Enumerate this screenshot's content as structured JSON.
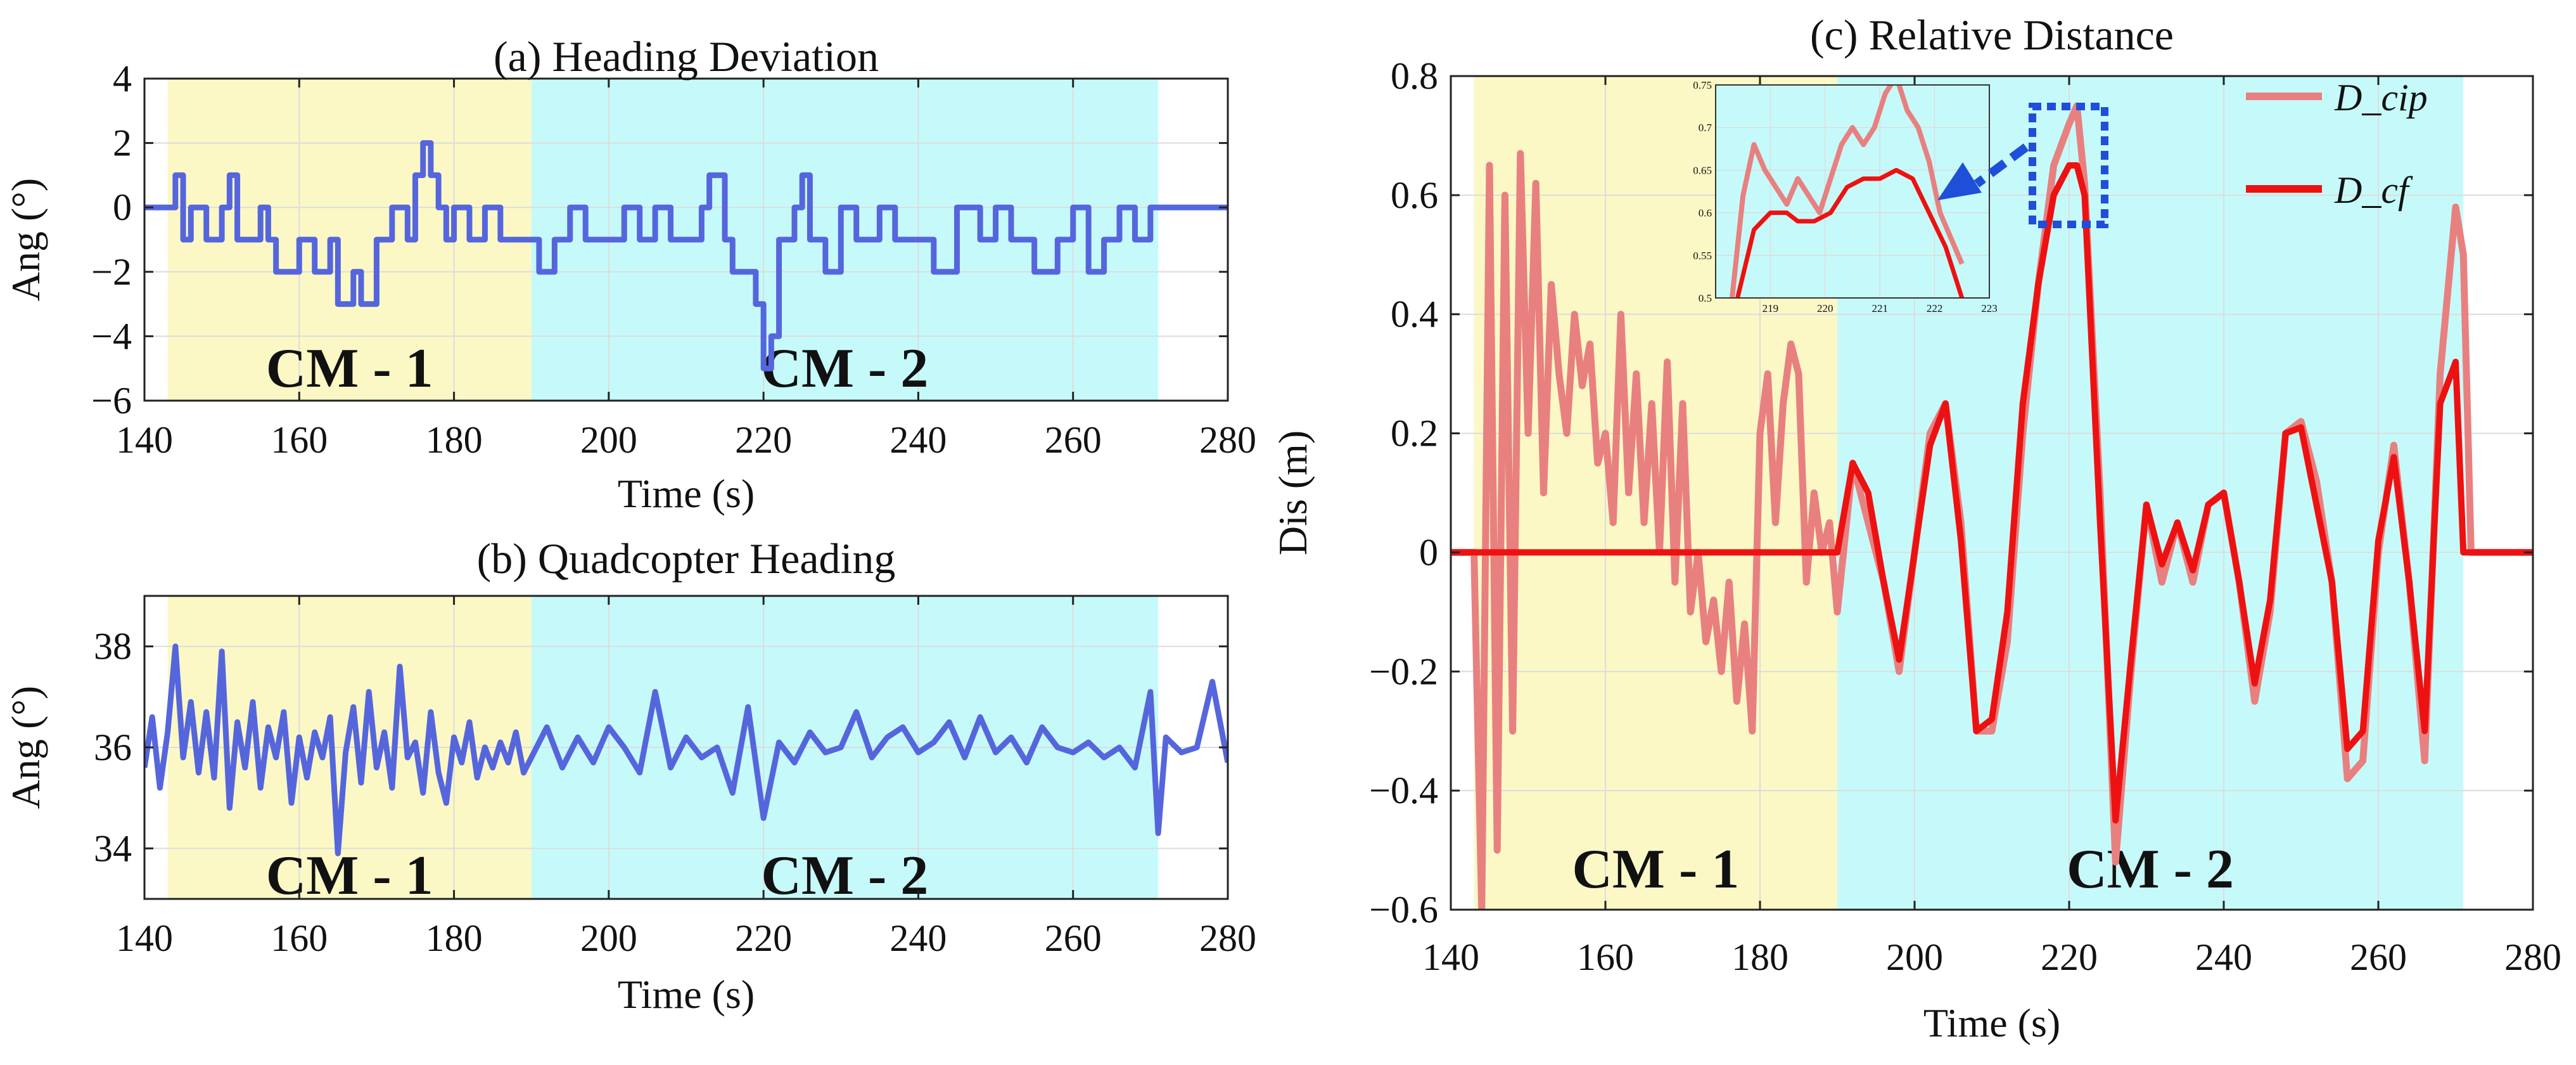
{
  "colors": {
    "cm1_band": "#fbf8c6",
    "cm2_band": "#c6fafa",
    "heading_line": "#5566dd",
    "dcip": "#e88080",
    "dcf": "#ee1111",
    "grid": "#dcdcdc",
    "arrow": "#1f4fd8"
  },
  "chart_data": [
    {
      "id": "a",
      "type": "line",
      "title": "(a) Heading Deviation",
      "xlabel": "Time (s)",
      "ylabel": "Ang (°)",
      "xlim": [
        140,
        280
      ],
      "ylim": [
        -6,
        4
      ],
      "xticks": [
        140,
        160,
        180,
        200,
        220,
        240,
        260,
        280
      ],
      "yticks": [
        -6,
        -4,
        -2,
        0,
        2,
        4
      ],
      "ytick_labels": [
        "−6",
        "−4",
        "−2",
        "0",
        "2",
        "4"
      ],
      "regions": [
        {
          "label": "CM - 1",
          "x": [
            143,
            190
          ],
          "color": "cm1"
        },
        {
          "label": "CM - 2",
          "x": [
            190,
            271
          ],
          "color": "cm2"
        }
      ],
      "series": [
        {
          "name": "Heading deviation",
          "x": [
            140,
            143,
            144,
            145,
            146,
            148,
            150,
            151,
            152,
            155,
            156,
            157,
            160,
            162,
            164,
            165,
            167,
            168,
            170,
            172,
            174,
            175,
            176,
            177,
            178,
            179,
            180,
            182,
            184,
            186,
            188,
            190,
            191,
            193,
            195,
            197,
            200,
            202,
            204,
            206,
            208,
            210,
            212,
            213,
            215,
            216,
            218,
            219,
            220,
            221,
            222,
            224,
            225,
            226,
            228,
            230,
            232,
            235,
            237,
            240,
            242,
            245,
            248,
            250,
            252,
            255,
            258,
            260,
            262,
            264,
            266,
            268,
            270,
            271,
            275,
            280
          ],
          "y": [
            0,
            0,
            1,
            -1,
            0,
            -1,
            0,
            1,
            -1,
            0,
            -1,
            -2,
            -1,
            -2,
            -1,
            -3,
            -2,
            -3,
            -1,
            0,
            -1,
            1,
            2,
            1,
            0,
            -1,
            0,
            -1,
            0,
            -1,
            -1,
            -1,
            -2,
            -1,
            0,
            -1,
            -1,
            0,
            -1,
            0,
            -1,
            -1,
            0,
            1,
            -1,
            -2,
            -2,
            -3,
            -5,
            -4,
            -1,
            0,
            1,
            -1,
            -2,
            0,
            -1,
            0,
            -1,
            -1,
            -2,
            0,
            -1,
            0,
            -1,
            -2,
            -1,
            0,
            -2,
            -1,
            0,
            -1,
            0,
            0,
            0,
            0
          ]
        }
      ]
    },
    {
      "id": "b",
      "type": "line",
      "title": "(b) Quadcopter Heading",
      "xlabel": "Time (s)",
      "ylabel": "Ang (°)",
      "xlim": [
        140,
        280
      ],
      "ylim": [
        33,
        39
      ],
      "xticks": [
        140,
        160,
        180,
        200,
        220,
        240,
        260,
        280
      ],
      "yticks": [
        34,
        36,
        38
      ],
      "ytick_labels": [
        "34",
        "36",
        "38"
      ],
      "regions": [
        {
          "label": "CM - 1",
          "x": [
            143,
            190
          ],
          "color": "cm1"
        },
        {
          "label": "CM - 2",
          "x": [
            190,
            271
          ],
          "color": "cm2"
        }
      ],
      "series": [
        {
          "name": "Heading",
          "x": [
            140,
            141,
            142,
            143,
            144,
            145,
            146,
            147,
            148,
            149,
            150,
            151,
            152,
            153,
            154,
            155,
            156,
            157,
            158,
            159,
            160,
            161,
            162,
            163,
            164,
            165,
            166,
            167,
            168,
            169,
            170,
            171,
            172,
            173,
            174,
            175,
            176,
            177,
            178,
            179,
            180,
            181,
            182,
            183,
            184,
            185,
            186,
            187,
            188,
            189,
            190,
            192,
            194,
            196,
            198,
            200,
            202,
            204,
            206,
            208,
            210,
            212,
            214,
            216,
            218,
            220,
            222,
            224,
            226,
            228,
            230,
            232,
            234,
            236,
            238,
            240,
            242,
            244,
            246,
            248,
            250,
            252,
            254,
            256,
            258,
            260,
            262,
            264,
            266,
            268,
            270,
            271,
            272,
            274,
            276,
            278,
            280
          ],
          "y": [
            35.6,
            36.6,
            35.2,
            36.3,
            38.0,
            35.8,
            36.9,
            35.5,
            36.7,
            35.4,
            37.9,
            34.8,
            36.5,
            35.6,
            36.9,
            35.2,
            36.4,
            35.8,
            36.7,
            34.9,
            36.2,
            35.4,
            36.3,
            35.8,
            36.6,
            33.9,
            35.9,
            36.8,
            35.3,
            37.1,
            35.6,
            36.3,
            35.2,
            37.6,
            35.8,
            36.1,
            35.1,
            36.7,
            35.5,
            34.9,
            36.2,
            35.7,
            36.5,
            35.4,
            36.0,
            35.6,
            36.1,
            35.7,
            36.3,
            35.5,
            35.8,
            36.4,
            35.6,
            36.2,
            35.7,
            36.4,
            36.0,
            35.5,
            37.1,
            35.6,
            36.2,
            35.8,
            36.0,
            35.1,
            36.8,
            34.6,
            36.1,
            35.7,
            36.3,
            35.9,
            36.0,
            36.7,
            35.8,
            36.2,
            36.4,
            35.9,
            36.1,
            36.5,
            35.8,
            36.6,
            35.9,
            36.2,
            35.7,
            36.4,
            36.0,
            35.9,
            36.1,
            35.8,
            36.0,
            35.6,
            37.1,
            34.3,
            36.2,
            35.9,
            36.0,
            37.3,
            35.7
          ]
        }
      ]
    },
    {
      "id": "c",
      "type": "line",
      "title": "(c) Relative Distance",
      "xlabel": "Time (s)",
      "ylabel": "Dis (m)",
      "xlim": [
        140,
        280
      ],
      "ylim": [
        -0.6,
        0.8
      ],
      "xticks": [
        140,
        160,
        180,
        200,
        220,
        240,
        260,
        280
      ],
      "yticks": [
        -0.6,
        -0.4,
        -0.2,
        0,
        0.2,
        0.4,
        0.6,
        0.8
      ],
      "ytick_labels": [
        "−0.6",
        "−0.4",
        "−0.2",
        "0",
        "0.2",
        "0.4",
        "0.6",
        "0.8"
      ],
      "regions": [
        {
          "label": "CM - 1",
          "x": [
            143,
            190
          ],
          "color": "cm1"
        },
        {
          "label": "CM - 2",
          "x": [
            190,
            271
          ],
          "color": "cm2"
        }
      ],
      "legend": {
        "position": "top-right",
        "entries": [
          "D_cip",
          "D_cf"
        ]
      },
      "series": [
        {
          "name": "D_cip",
          "color": "dcip",
          "x": [
            140,
            143,
            144,
            145,
            146,
            147,
            148,
            149,
            150,
            151,
            152,
            153,
            154,
            155,
            156,
            157,
            158,
            159,
            160,
            161,
            162,
            163,
            164,
            165,
            166,
            167,
            168,
            169,
            170,
            171,
            172,
            173,
            174,
            175,
            176,
            177,
            178,
            179,
            180,
            181,
            182,
            183,
            184,
            185,
            186,
            187,
            188,
            189,
            190,
            192,
            194,
            196,
            198,
            200,
            202,
            204,
            206,
            208,
            210,
            212,
            214,
            216,
            218,
            220,
            221,
            222,
            224,
            226,
            228,
            230,
            232,
            234,
            236,
            238,
            240,
            242,
            244,
            246,
            248,
            250,
            252,
            254,
            256,
            258,
            260,
            262,
            264,
            266,
            268,
            270,
            271,
            272,
            273,
            280
          ],
          "y": [
            0,
            0,
            -0.6,
            0.65,
            -0.5,
            0.6,
            -0.3,
            0.67,
            0.2,
            0.62,
            0.1,
            0.45,
            0.3,
            0.2,
            0.4,
            0.28,
            0.35,
            0.15,
            0.2,
            0.05,
            0.4,
            0.1,
            0.3,
            0.05,
            0.25,
            0.0,
            0.32,
            -0.05,
            0.25,
            -0.1,
            0.0,
            -0.15,
            -0.08,
            -0.2,
            -0.05,
            -0.25,
            -0.12,
            -0.3,
            0.2,
            0.3,
            0.05,
            0.25,
            0.35,
            0.3,
            -0.05,
            0.1,
            0.0,
            0.05,
            -0.1,
            0.15,
            0.05,
            -0.05,
            -0.2,
            0.0,
            0.2,
            0.25,
            0.05,
            -0.3,
            -0.3,
            -0.15,
            0.2,
            0.45,
            0.65,
            0.72,
            0.75,
            0.62,
            0.1,
            -0.52,
            -0.2,
            0.08,
            -0.05,
            0.05,
            -0.05,
            0.08,
            0.1,
            -0.05,
            -0.25,
            -0.1,
            0.2,
            0.22,
            0.12,
            -0.05,
            -0.38,
            -0.35,
            0.0,
            0.18,
            -0.05,
            -0.35,
            0.3,
            0.58,
            0.5,
            0.0,
            0.0,
            0.0
          ]
        },
        {
          "name": "D_cf",
          "color": "dcf",
          "x": [
            140,
            189,
            190,
            192,
            194,
            196,
            198,
            200,
            202,
            204,
            206,
            208,
            210,
            212,
            214,
            216,
            218,
            220,
            221,
            222,
            224,
            226,
            228,
            230,
            232,
            234,
            236,
            238,
            240,
            242,
            244,
            246,
            248,
            250,
            252,
            254,
            256,
            258,
            260,
            262,
            264,
            266,
            268,
            270,
            271,
            271.5,
            280
          ],
          "y": [
            0,
            0,
            0.0,
            0.15,
            0.1,
            -0.05,
            -0.18,
            0.0,
            0.18,
            0.25,
            0.02,
            -0.3,
            -0.28,
            -0.1,
            0.25,
            0.45,
            0.6,
            0.65,
            0.65,
            0.6,
            0.05,
            -0.45,
            -0.18,
            0.08,
            -0.02,
            0.05,
            -0.03,
            0.08,
            0.1,
            -0.05,
            -0.22,
            -0.08,
            0.2,
            0.21,
            0.08,
            -0.05,
            -0.33,
            -0.3,
            0.02,
            0.16,
            -0.05,
            -0.3,
            0.25,
            0.32,
            0.0,
            0.0,
            0.0
          ]
        }
      ],
      "inset": {
        "xlim": [
          218,
          223
        ],
        "ylim": [
          0.5,
          0.75
        ],
        "xticks": [
          219,
          220,
          221,
          222,
          223
        ],
        "yticks": [
          0.5,
          0.55,
          0.6,
          0.65,
          0.7,
          0.75
        ],
        "series": [
          {
            "name": "D_cip",
            "color": "dcip",
            "x": [
              218.3,
              218.5,
              218.7,
              218.9,
              219.1,
              219.3,
              219.5,
              219.7,
              219.9,
              220.1,
              220.3,
              220.5,
              220.7,
              220.9,
              221.1,
              221.3,
              221.5,
              221.7,
              221.9,
              222.1,
              222.3,
              222.5
            ],
            "y": [
              0.5,
              0.62,
              0.68,
              0.65,
              0.63,
              0.61,
              0.64,
              0.62,
              0.6,
              0.64,
              0.68,
              0.7,
              0.68,
              0.7,
              0.74,
              0.76,
              0.72,
              0.7,
              0.66,
              0.6,
              0.57,
              0.54
            ]
          },
          {
            "name": "D_cf",
            "color": "dcf",
            "x": [
              218.4,
              218.7,
              219.0,
              219.3,
              219.5,
              219.8,
              220.1,
              220.4,
              220.7,
              221.0,
              221.3,
              221.6,
              221.9,
              222.2,
              222.5
            ],
            "y": [
              0.5,
              0.58,
              0.6,
              0.6,
              0.59,
              0.59,
              0.6,
              0.63,
              0.64,
              0.64,
              0.65,
              0.64,
              0.6,
              0.56,
              0.5
            ]
          }
        ]
      }
    }
  ]
}
